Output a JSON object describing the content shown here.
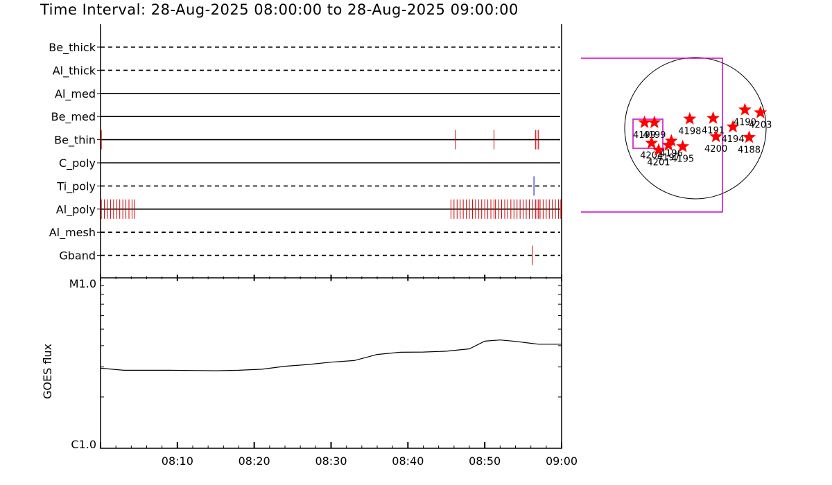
{
  "title": "Time Interval: 28-Aug-2025 08:00:00 to 28-Aug-2025 09:00:00",
  "chart_data": [
    {
      "type": "timeline",
      "x_range": [
        "08:00",
        "09:00"
      ],
      "channels": [
        {
          "name": "Be_thick",
          "style": "dashed",
          "events": [],
          "color": "#000000"
        },
        {
          "name": "Al_thick",
          "style": "dashed",
          "events": [],
          "color": "#000000"
        },
        {
          "name": "Al_med",
          "style": "solid",
          "events": [],
          "color": "#000000"
        },
        {
          "name": "Be_med",
          "style": "solid",
          "events": [],
          "color": "#000000"
        },
        {
          "name": "Be_thin",
          "style": "solid",
          "events": [
            0.1,
            46.2,
            51.2,
            56.6,
            56.8,
            57.0
          ],
          "event_color": "#cc0000"
        },
        {
          "name": "C_poly",
          "style": "solid",
          "events": []
        },
        {
          "name": "Ti_poly",
          "style": "dashed",
          "events": [
            56.4
          ],
          "event_color": "#0000cc"
        },
        {
          "name": "Al_poly",
          "style": "solid",
          "events": [
            0.1,
            0.5,
            0.9,
            1.3,
            1.7,
            2.1,
            2.5,
            2.9,
            3.3,
            3.7,
            4.1,
            4.4,
            45.6,
            46.0,
            46.4,
            46.8,
            47.2,
            47.6,
            48.0,
            48.4,
            48.8,
            49.2,
            49.6,
            50.0,
            50.4,
            50.8,
            51.2,
            51.4,
            51.8,
            52.2,
            52.6,
            53.0,
            53.4,
            53.8,
            54.2,
            54.6,
            55.0,
            55.4,
            55.8,
            56.2,
            56.6,
            56.8,
            57.0,
            57.2,
            57.6,
            58.0,
            58.4,
            58.8,
            59.2,
            59.6,
            59.9
          ],
          "event_color": "#cc0000"
        },
        {
          "name": "Al_mesh",
          "style": "dashed",
          "events": []
        },
        {
          "name": "Gband",
          "style": "dashed",
          "events": [
            56.2
          ],
          "event_color": "#cc0000"
        }
      ]
    },
    {
      "type": "line",
      "ylabel": "GOES flux",
      "y_top_label": "M1.0",
      "y_bottom_label": "C1.0",
      "yscale": "log",
      "ylim": [
        1e-06,
        1e-05
      ],
      "x_tick_labels": [
        "08:10",
        "08:20",
        "08:30",
        "08:40",
        "08:50",
        "09:00"
      ],
      "x_minutes": [
        0,
        3,
        6,
        9,
        12,
        15,
        18,
        21,
        24,
        27,
        30,
        33,
        36,
        39,
        42,
        45,
        48,
        50,
        52,
        54,
        57,
        60
      ],
      "values": [
        2.95e-06,
        2.87e-06,
        2.87e-06,
        2.87e-06,
        2.86e-06,
        2.85e-06,
        2.87e-06,
        2.91e-06,
        3.03e-06,
        3.1e-06,
        3.2e-06,
        3.27e-06,
        3.55e-06,
        3.66e-06,
        3.67e-06,
        3.71e-06,
        3.83e-06,
        4.25e-06,
        4.32e-06,
        4.24e-06,
        4.08e-06,
        4.08e-06
      ],
      "line_color": "#000000"
    },
    {
      "type": "scatter",
      "description_key": "solar_disk",
      "fov_color": "#cc00cc",
      "marker_color": "#ff0000",
      "active_regions": [
        {
          "label": "4199",
          "x": -0.72,
          "y": 0.08
        },
        {
          "label": "4199b",
          "display": "4199",
          "x": -0.58,
          "y": 0.08
        },
        {
          "label": "4204",
          "x": -0.62,
          "y": -0.21
        },
        {
          "label": "4201",
          "x": -0.52,
          "y": -0.31
        },
        {
          "label": "4197",
          "x": -0.38,
          "y": -0.24
        },
        {
          "label": "4196",
          "x": -0.34,
          "y": -0.18
        },
        {
          "label": "4195",
          "x": -0.18,
          "y": -0.26
        },
        {
          "label": "4198",
          "x": -0.08,
          "y": 0.13
        },
        {
          "label": "4191",
          "x": 0.25,
          "y": 0.14
        },
        {
          "label": "4200",
          "x": 0.29,
          "y": -0.12
        },
        {
          "label": "4194",
          "x": 0.53,
          "y": 0.02
        },
        {
          "label": "4190",
          "x": 0.7,
          "y": 0.26
        },
        {
          "label": "4203",
          "x": 0.92,
          "y": 0.22
        },
        {
          "label": "4188",
          "x": 0.76,
          "y": -0.13
        }
      ]
    }
  ]
}
